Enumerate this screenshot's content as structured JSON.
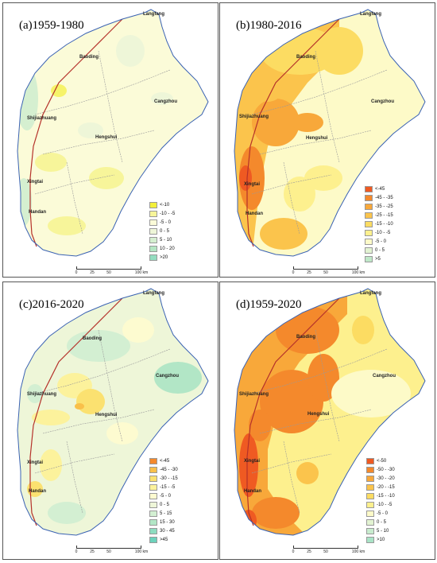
{
  "panels": [
    {
      "title": "(a)1959-1980",
      "legend": [
        {
          "label": "<-10",
          "color": "#f3ef3a"
        },
        {
          "label": "-10 - -5",
          "color": "#f7f59a"
        },
        {
          "label": "-5 - 0",
          "color": "#fbfbd8"
        },
        {
          "label": "0 - 5",
          "color": "#eef6d8"
        },
        {
          "label": "5 - 10",
          "color": "#d5efd0"
        },
        {
          "label": "10 - 20",
          "color": "#b4e6c3"
        },
        {
          "label": ">20",
          "color": "#93ddc0"
        }
      ]
    },
    {
      "title": "(b)1980-2016",
      "legend": [
        {
          "label": "<-45",
          "color": "#ef5a22"
        },
        {
          "label": "-45 - -35",
          "color": "#f4892c"
        },
        {
          "label": "-35 - -25",
          "color": "#f8a83a"
        },
        {
          "label": "-25 - -15",
          "color": "#fbc44c"
        },
        {
          "label": "-15 - -10",
          "color": "#fcdc62"
        },
        {
          "label": "-10 - -5",
          "color": "#fdf08e"
        },
        {
          "label": "-5 - 0",
          "color": "#fdfac8"
        },
        {
          "label": "0 - 5",
          "color": "#e2f3d2"
        },
        {
          "label": ">5",
          "color": "#bfe8c8"
        }
      ]
    },
    {
      "title": "(c)2016-2020",
      "legend": [
        {
          "label": "<-45",
          "color": "#f4892c"
        },
        {
          "label": "-45 - -30",
          "color": "#f9c04a"
        },
        {
          "label": "-30 - -15",
          "color": "#fbe170"
        },
        {
          "label": "-15 - -5",
          "color": "#fcf29c"
        },
        {
          "label": "-5 - 0",
          "color": "#fdfbd0"
        },
        {
          "label": "0 - 5",
          "color": "#eef6d8"
        },
        {
          "label": "5 - 15",
          "color": "#d3efd2"
        },
        {
          "label": "15 - 30",
          "color": "#b2e6c6"
        },
        {
          "label": "30 - 45",
          "color": "#8edcc0"
        },
        {
          "label": ">45",
          "color": "#6cd2bb"
        }
      ]
    },
    {
      "title": "(d)1959-2020",
      "legend": [
        {
          "label": "<-50",
          "color": "#ef5a22"
        },
        {
          "label": "-50 - -30",
          "color": "#f4892c"
        },
        {
          "label": "-30 - -20",
          "color": "#f8a83a"
        },
        {
          "label": "-20 - -15",
          "color": "#fbc44c"
        },
        {
          "label": "-15 - -10",
          "color": "#fcdc62"
        },
        {
          "label": "-10 - -5",
          "color": "#fdf08e"
        },
        {
          "label": "-5 - 0",
          "color": "#fdfac8"
        },
        {
          "label": "0 - 5",
          "color": "#e2f3d2"
        },
        {
          "label": "5 - 10",
          "color": "#c8ecce"
        },
        {
          "label": ">10",
          "color": "#a9e3c6"
        }
      ]
    }
  ],
  "cities": {
    "langfang": "Langfang",
    "baoding": "Baoding",
    "cangzhou": "Cangzhou",
    "shijiazhuang": "Shijiazhuang",
    "hengshui": "Hengshui",
    "xingtai": "Xingtai",
    "handan": "Handan"
  },
  "scale": {
    "t0": "0",
    "t1": "25",
    "t2": "50",
    "t3": "100 km"
  },
  "colors": {
    "boundary": "#3a62b3",
    "railway": "#b5312a",
    "admin": "#9a9a9a"
  }
}
